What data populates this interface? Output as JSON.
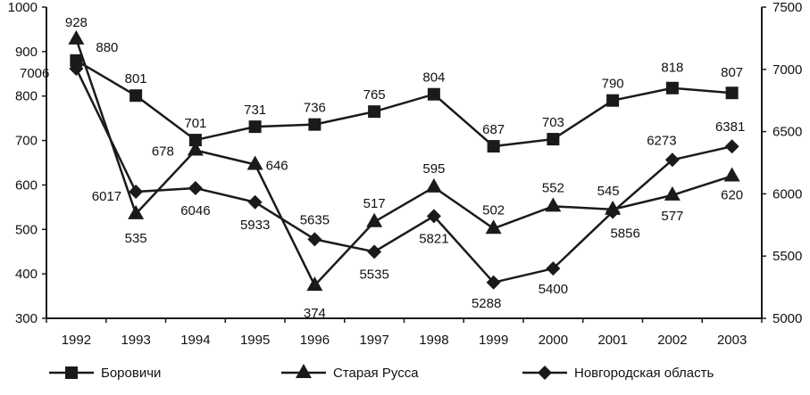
{
  "chart_data": {
    "type": "line",
    "title": "",
    "categories": [
      "1992",
      "1993",
      "1994",
      "1995",
      "1996",
      "1997",
      "1998",
      "1999",
      "2000",
      "2001",
      "2002",
      "2003"
    ],
    "left_axis": {
      "ylim": [
        300,
        1000
      ],
      "ticks": [
        300,
        400,
        500,
        600,
        700,
        800,
        900,
        1000
      ]
    },
    "right_axis": {
      "ylim": [
        5000,
        7500
      ],
      "ticks": [
        5000,
        5500,
        6000,
        6500,
        7000,
        7500
      ]
    },
    "grid": false,
    "legend_position": "bottom",
    "series": [
      {
        "name": "Боровичи",
        "marker": "square",
        "axis": "left",
        "values": [
          880,
          801,
          701,
          731,
          736,
          765,
          804,
          687,
          703,
          790,
          818,
          807
        ]
      },
      {
        "name": "Старая Русса",
        "marker": "triangle",
        "axis": "left",
        "values": [
          928,
          535,
          678,
          646,
          374,
          517,
          595,
          502,
          552,
          545,
          577,
          620
        ]
      },
      {
        "name": "Новгородская область",
        "marker": "diamond",
        "axis": "right",
        "values": [
          7006,
          6017,
          6046,
          5933,
          5635,
          5535,
          5821,
          5288,
          5400,
          5856,
          6273,
          6381
        ]
      }
    ],
    "line_color": "#1a1a1a"
  }
}
